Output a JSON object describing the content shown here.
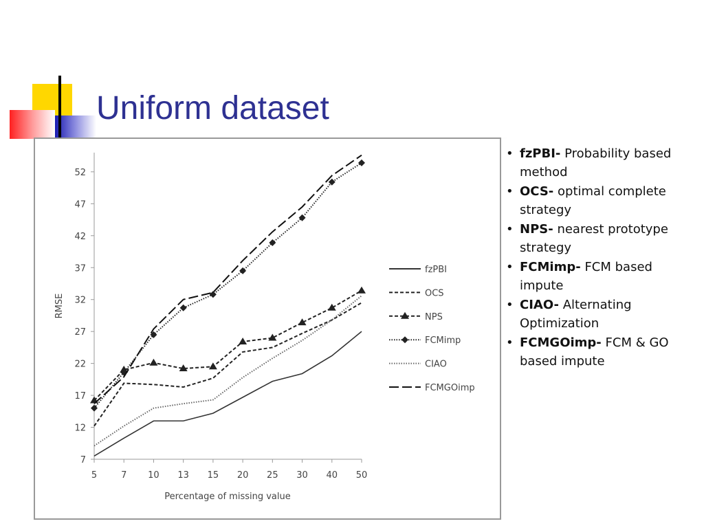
{
  "slide": {
    "title": "Uniform dataset",
    "bullets": [
      {
        "term": "fzPBI-",
        "text": "Probability based method"
      },
      {
        "term": "OCS-",
        "text": "optimal complete strategy"
      },
      {
        "term": "NPS-",
        "text": "nearest prototype strategy"
      },
      {
        "term": "FCMimp-",
        "text": "FCM based impute"
      },
      {
        "term": "CIAO-",
        "text": "Alternating Optimization"
      },
      {
        "term": "FCMGOimp-",
        "text": "FCM & GO based impute"
      }
    ]
  },
  "chart_data": {
    "type": "line",
    "x_label": "Percentage of missing value",
    "y_label": "RMSE",
    "categories": [
      "5",
      "7",
      "10",
      "13",
      "15",
      "20",
      "25",
      "30",
      "40",
      "50"
    ],
    "ylim": [
      7,
      55
    ],
    "yticks": [
      7,
      12,
      17,
      22,
      27,
      32,
      37,
      42,
      47,
      52
    ],
    "series": [
      {
        "name": "fzPBI",
        "color": "#333333",
        "dash": "solid",
        "marker": "none",
        "values": [
          7.5,
          10.3,
          13,
          13,
          14.2,
          16.7,
          19.2,
          20.4,
          23.2,
          27
        ]
      },
      {
        "name": "OCS",
        "color": "#222222",
        "dash": "short",
        "marker": "none",
        "values": [
          12.2,
          18.9,
          18.7,
          18.3,
          19.7,
          23.8,
          24.5,
          26.7,
          28.8,
          31.5
        ]
      },
      {
        "name": "NPS",
        "color": "#222222",
        "dash": "short",
        "marker": "triangle",
        "values": [
          16.2,
          21,
          22.1,
          21.2,
          21.5,
          25.4,
          26,
          28.4,
          30.7,
          33.4
        ]
      },
      {
        "name": "FCMimp",
        "color": "#222222",
        "dash": "dot",
        "marker": "diamond",
        "values": [
          15,
          20.6,
          26.5,
          30.7,
          32.8,
          36.5,
          40.9,
          44.8,
          50.4,
          53.4
        ]
      },
      {
        "name": "CIAO",
        "color": "#666666",
        "dash": "dot",
        "marker": "none",
        "values": [
          9.1,
          12.2,
          15,
          15.7,
          16.3,
          19.8,
          22.8,
          25.6,
          28.8,
          32.6
        ]
      },
      {
        "name": "FCMGOimp",
        "color": "#111111",
        "dash": "long",
        "marker": "none",
        "values": [
          15.7,
          19.9,
          27.4,
          32,
          33.1,
          38.1,
          42.6,
          46.5,
          51.4,
          54.6
        ]
      }
    ]
  }
}
